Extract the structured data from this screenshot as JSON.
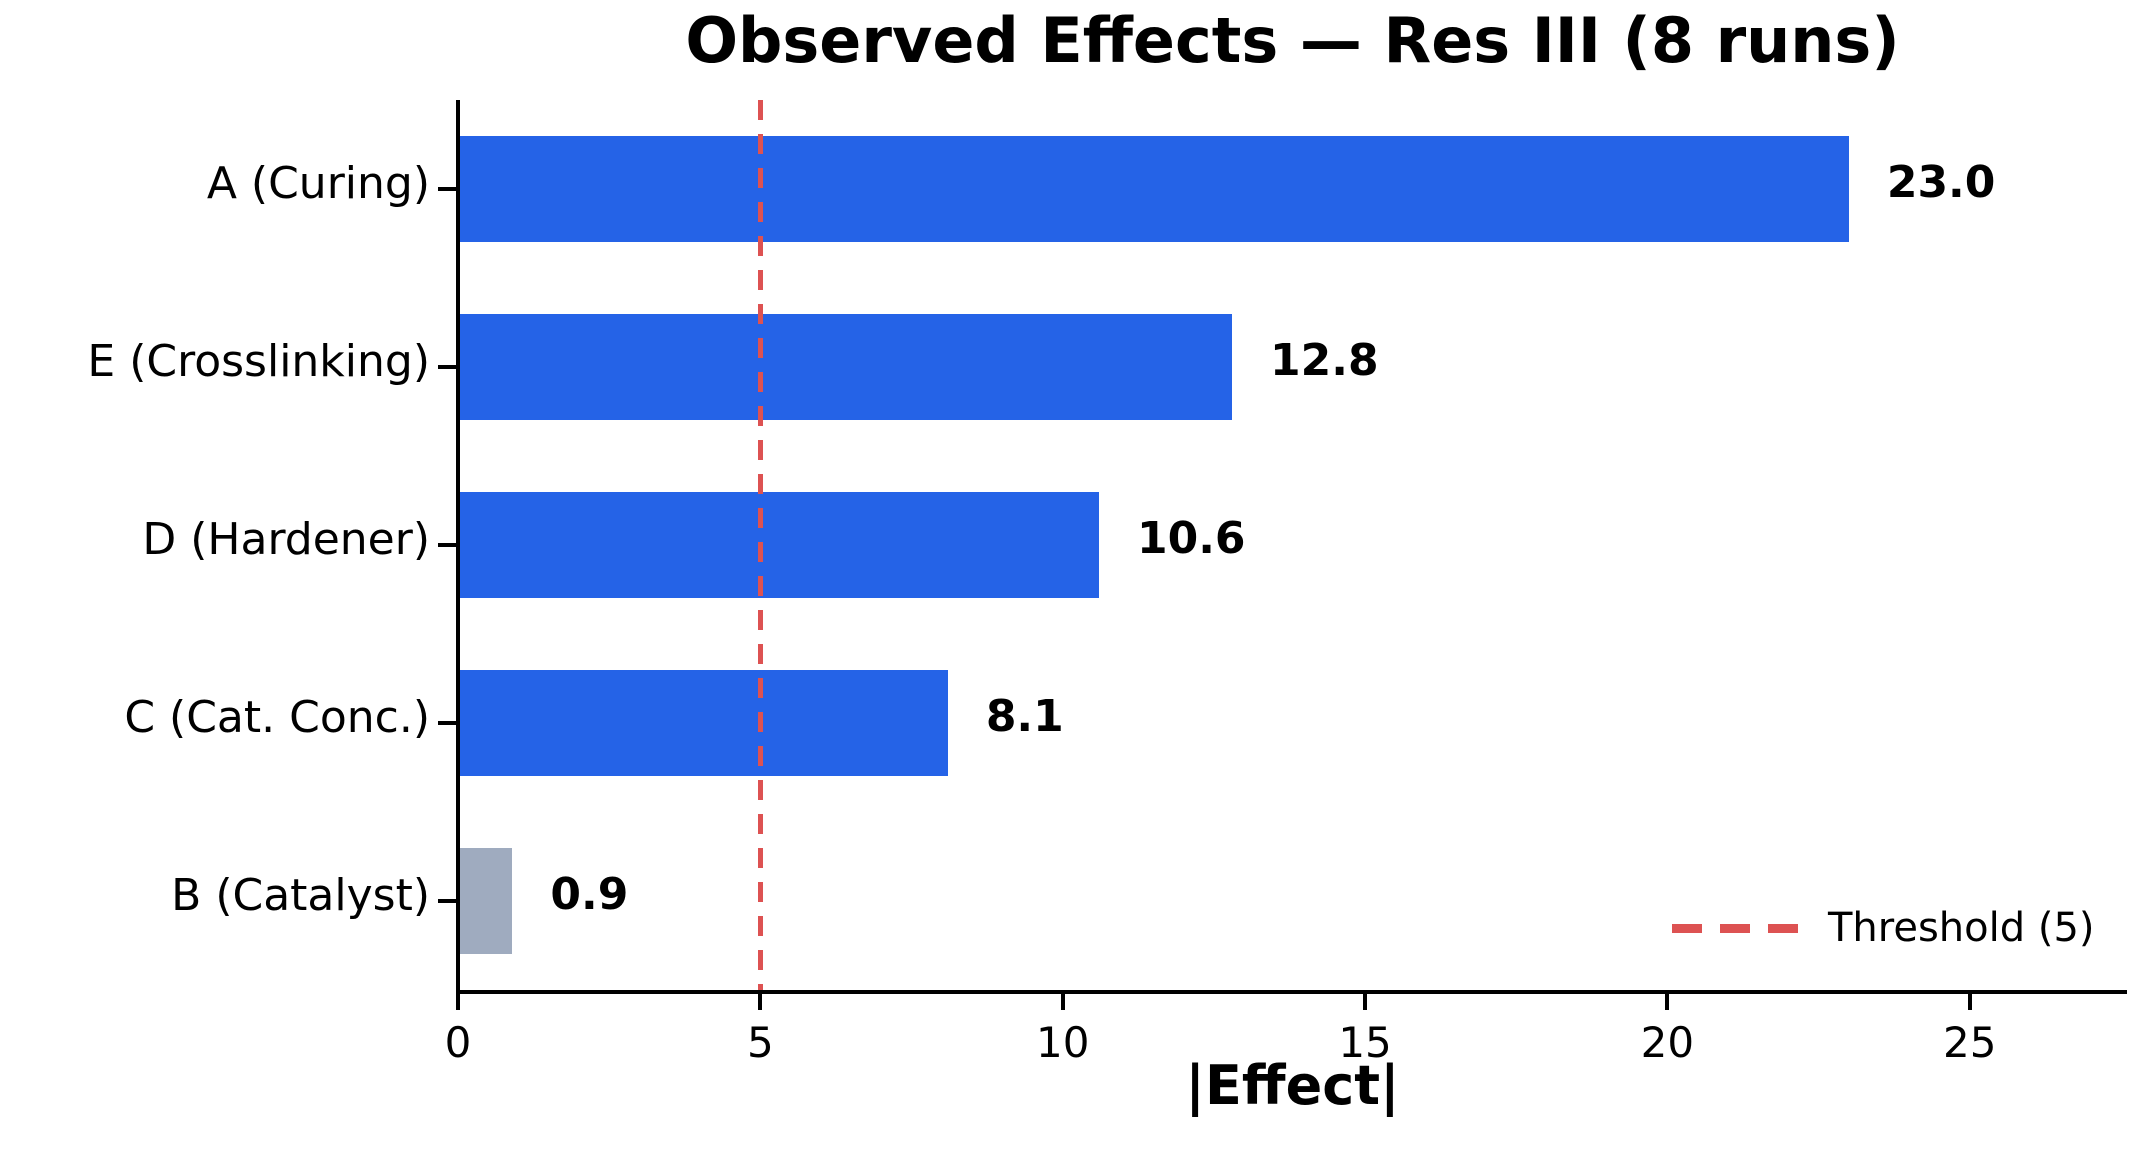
{
  "chart_data": {
    "type": "bar",
    "orientation": "horizontal",
    "title": "Observed Effects — Res III (8 runs)",
    "xlabel": "|Effect|",
    "ylabel": "",
    "categories": [
      "A (Curing)",
      "E (Crosslinking)",
      "D (Hardener)",
      "C (Cat. Conc.)",
      "B (Catalyst)"
    ],
    "values": [
      23.0,
      12.8,
      10.6,
      8.1,
      0.9
    ],
    "value_labels": [
      "23.0",
      "12.8",
      "10.6",
      "8.1",
      "0.9"
    ],
    "bar_colors": [
      "#2563e7",
      "#2563e7",
      "#2563e7",
      "#2563e7",
      "#9fabbf"
    ],
    "significant_color": "#2563e7",
    "below_threshold_color": "#9fabbf",
    "threshold": 5,
    "threshold_color": "#dd5252",
    "xticks": [
      0,
      5,
      10,
      15,
      20,
      25
    ],
    "xlim": [
      0,
      27.6
    ],
    "grid": false,
    "legend": {
      "label": "Threshold (5)",
      "position": "lower right"
    }
  }
}
